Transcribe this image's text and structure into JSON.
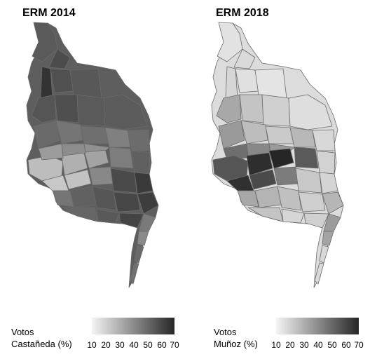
{
  "maps": [
    {
      "title": "ERM 2014",
      "legend": {
        "label_line1": "Votos",
        "label_line2": "Castañeda (%)",
        "ticks": [
          "10",
          "20",
          "30",
          "40",
          "50",
          "60",
          "70"
        ]
      }
    },
    {
      "title": "ERM 2018",
      "legend": {
        "label_line1": "Votos",
        "label_line2": "Muñoz (%)",
        "ticks": [
          "10",
          "20",
          "30",
          "40",
          "50",
          "60",
          "70"
        ]
      }
    }
  ],
  "colors": {
    "legend_low": "#f4f4f4",
    "legend_high": "#262626",
    "border": "#6a6a6a"
  }
}
